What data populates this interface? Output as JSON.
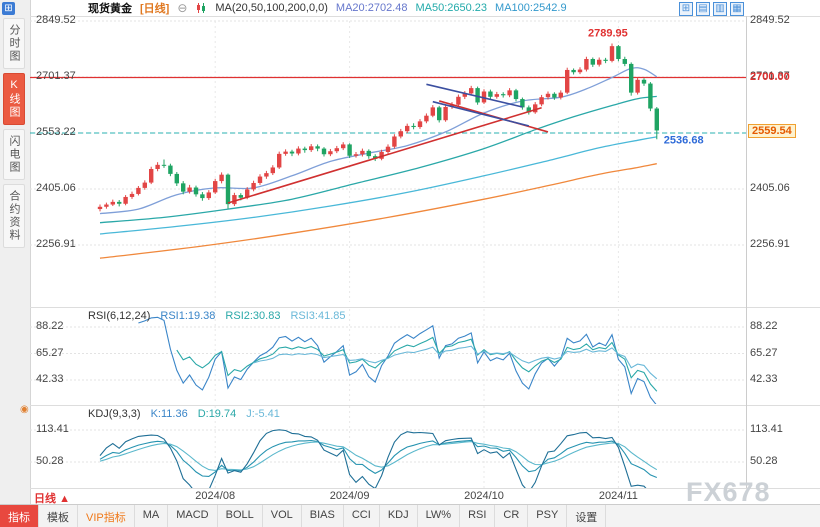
{
  "header": {
    "symbol": "现货黄金",
    "period": "[日线]",
    "ma_settings": "MA(20,50,100,200,0,0)",
    "ma20": "MA20:2702.48",
    "ma50": "MA50:2650.23",
    "ma100": "MA100:2542.9",
    "window_icons": [
      {
        "label": "⊞"
      },
      {
        "label": "▤"
      },
      {
        "label": "▥"
      },
      {
        "label": "▦"
      }
    ]
  },
  "sidebar": {
    "items": [
      {
        "label": "分时图"
      },
      {
        "label": "K线图",
        "cls": "active"
      },
      {
        "label": "闪电图"
      },
      {
        "label": "合约资料"
      }
    ]
  },
  "rsi": {
    "title": "RSI(6,12,24)",
    "v1": "RSI1:19.38",
    "v2": "RSI2:30.83",
    "v3": "RSI3:41.85",
    "axis": [
      88.22,
      65.27,
      42.33
    ],
    "periods": [
      6,
      12,
      24
    ],
    "colors": [
      "#3a85c8",
      "#2aa8a8",
      "#6ab8d8"
    ]
  },
  "kdj": {
    "title": "KDJ(9,3,3)",
    "vk": "K:11.36",
    "vd": "D:19.74",
    "vj": "J:-5.41",
    "axis": [
      113.41,
      50.28
    ],
    "colors": [
      "#2693b0",
      "#5bb8cc",
      "#1f6f96"
    ]
  },
  "x_axis": {
    "labels": [
      "2024/08",
      "2024/09",
      "2024/10",
      "2024/11"
    ],
    "period_label": "日线",
    "period_arrow": "▲"
  },
  "annotations": {
    "hline": "2700.00",
    "last_price": "2559.54"
  },
  "toolbar": {
    "tabs": [
      {
        "label": "指标",
        "cls": "active"
      },
      {
        "label": "模板"
      },
      {
        "label": "VIP指标",
        "cls": "vip"
      },
      {
        "label": "MA"
      },
      {
        "label": "MACD"
      },
      {
        "label": "BOLL"
      },
      {
        "label": "VOL"
      },
      {
        "label": "BIAS"
      },
      {
        "label": "CCI"
      },
      {
        "label": "KDJ"
      },
      {
        "label": "LW%"
      },
      {
        "label": "RSI"
      },
      {
        "label": "CR"
      },
      {
        "label": "PSY"
      },
      {
        "label": "设置"
      }
    ]
  },
  "watermark": "FX678",
  "chart_data": {
    "type": "candlestick",
    "title": "现货黄金 日线",
    "y_ticks": [
      2849.52,
      2701.37,
      2553.22,
      2405.06,
      2256.91
    ],
    "x_tick_indices": [
      18,
      39,
      60,
      81
    ],
    "red_line_value": 2700.0,
    "dashed_line_value": 2553.22,
    "peak_value": 2789.95,
    "last_low_value": 2536.68,
    "last_price": 2559.54,
    "up_color": "#e24545",
    "down_color": "#1fa463",
    "candles": [
      [
        2352,
        2364,
        2346,
        2358
      ],
      [
        2358,
        2369,
        2353,
        2364
      ],
      [
        2364,
        2377,
        2360,
        2371
      ],
      [
        2371,
        2376,
        2359,
        2366
      ],
      [
        2366,
        2389,
        2362,
        2384
      ],
      [
        2384,
        2398,
        2379,
        2392
      ],
      [
        2392,
        2413,
        2388,
        2408
      ],
      [
        2408,
        2428,
        2403,
        2422
      ],
      [
        2422,
        2464,
        2418,
        2458
      ],
      [
        2458,
        2476,
        2452,
        2469
      ],
      [
        2469,
        2483,
        2461,
        2467
      ],
      [
        2467,
        2472,
        2439,
        2445
      ],
      [
        2445,
        2450,
        2413,
        2420
      ],
      [
        2420,
        2426,
        2391,
        2398
      ],
      [
        2398,
        2416,
        2393,
        2409
      ],
      [
        2409,
        2414,
        2385,
        2391
      ],
      [
        2391,
        2397,
        2374,
        2381
      ],
      [
        2381,
        2402,
        2376,
        2396
      ],
      [
        2396,
        2432,
        2392,
        2426
      ],
      [
        2426,
        2449,
        2420,
        2443
      ],
      [
        2443,
        2446,
        2353,
        2365
      ],
      [
        2365,
        2395,
        2360,
        2389
      ],
      [
        2389,
        2394,
        2375,
        2382
      ],
      [
        2382,
        2410,
        2378,
        2404
      ],
      [
        2404,
        2427,
        2399,
        2421
      ],
      [
        2421,
        2444,
        2416,
        2438
      ],
      [
        2438,
        2453,
        2432,
        2447
      ],
      [
        2447,
        2468,
        2442,
        2462
      ],
      [
        2462,
        2504,
        2458,
        2498
      ],
      [
        2498,
        2510,
        2493,
        2504
      ],
      [
        2504,
        2509,
        2492,
        2499
      ],
      [
        2499,
        2518,
        2494,
        2512
      ],
      [
        2512,
        2517,
        2501,
        2508
      ],
      [
        2508,
        2524,
        2503,
        2518
      ],
      [
        2518,
        2523,
        2505,
        2512
      ],
      [
        2512,
        2516,
        2491,
        2497
      ],
      [
        2497,
        2511,
        2492,
        2505
      ],
      [
        2505,
        2519,
        2500,
        2513
      ],
      [
        2513,
        2529,
        2508,
        2523
      ],
      [
        2523,
        2526,
        2487,
        2493
      ],
      [
        2493,
        2503,
        2488,
        2497
      ],
      [
        2497,
        2512,
        2491,
        2506
      ],
      [
        2506,
        2510,
        2485,
        2492
      ],
      [
        2492,
        2497,
        2479,
        2485
      ],
      [
        2485,
        2509,
        2481,
        2503
      ],
      [
        2503,
        2523,
        2498,
        2517
      ],
      [
        2517,
        2550,
        2512,
        2544
      ],
      [
        2544,
        2564,
        2539,
        2558
      ],
      [
        2558,
        2578,
        2553,
        2572
      ],
      [
        2572,
        2579,
        2563,
        2569
      ],
      [
        2569,
        2590,
        2564,
        2584
      ],
      [
        2584,
        2605,
        2579,
        2599
      ],
      [
        2599,
        2627,
        2595,
        2621
      ],
      [
        2621,
        2625,
        2581,
        2587
      ],
      [
        2587,
        2628,
        2583,
        2622
      ],
      [
        2622,
        2635,
        2617,
        2628
      ],
      [
        2628,
        2655,
        2623,
        2649
      ],
      [
        2649,
        2664,
        2643,
        2658
      ],
      [
        2658,
        2678,
        2653,
        2672
      ],
      [
        2672,
        2676,
        2628,
        2634
      ],
      [
        2634,
        2669,
        2630,
        2663
      ],
      [
        2663,
        2668,
        2643,
        2649
      ],
      [
        2649,
        2662,
        2644,
        2656
      ],
      [
        2656,
        2661,
        2647,
        2653
      ],
      [
        2653,
        2672,
        2648,
        2666
      ],
      [
        2666,
        2670,
        2637,
        2643
      ],
      [
        2643,
        2647,
        2615,
        2621
      ],
      [
        2621,
        2626,
        2602,
        2608
      ],
      [
        2608,
        2635,
        2604,
        2629
      ],
      [
        2629,
        2654,
        2624,
        2648
      ],
      [
        2648,
        2663,
        2642,
        2657
      ],
      [
        2657,
        2661,
        2641,
        2647
      ],
      [
        2647,
        2666,
        2642,
        2660
      ],
      [
        2660,
        2726,
        2656,
        2720
      ],
      [
        2720,
        2724,
        2708,
        2714
      ],
      [
        2714,
        2727,
        2709,
        2721
      ],
      [
        2721,
        2755,
        2716,
        2749
      ],
      [
        2749,
        2753,
        2728,
        2734
      ],
      [
        2734,
        2753,
        2729,
        2747
      ],
      [
        2747,
        2752,
        2738,
        2744
      ],
      [
        2744,
        2789.95,
        2740,
        2783
      ],
      [
        2783,
        2786,
        2743,
        2749
      ],
      [
        2749,
        2755,
        2730,
        2736
      ],
      [
        2736,
        2740,
        2652,
        2660
      ],
      [
        2660,
        2700,
        2655,
        2694
      ],
      [
        2694,
        2698,
        2678,
        2684
      ],
      [
        2684,
        2688,
        2611,
        2618
      ],
      [
        2618,
        2622,
        2536.68,
        2560
      ]
    ],
    "ma_lines": [
      {
        "name": "MA20",
        "color": "#7f9fd8",
        "points": [
          [
            0,
            2340
          ],
          [
            6,
            2352
          ],
          [
            12,
            2390
          ],
          [
            18,
            2408
          ],
          [
            24,
            2408
          ],
          [
            30,
            2440
          ],
          [
            36,
            2478
          ],
          [
            42,
            2500
          ],
          [
            48,
            2520
          ],
          [
            54,
            2556
          ],
          [
            60,
            2606
          ],
          [
            66,
            2638
          ],
          [
            72,
            2648
          ],
          [
            76,
            2670
          ],
          [
            80,
            2700
          ],
          [
            83,
            2724
          ],
          [
            85,
            2722
          ],
          [
            87,
            2702
          ]
        ]
      },
      {
        "name": "MA50",
        "color": "#2aa8a8",
        "points": [
          [
            0,
            2316
          ],
          [
            10,
            2330
          ],
          [
            20,
            2352
          ],
          [
            30,
            2378
          ],
          [
            40,
            2420
          ],
          [
            50,
            2462
          ],
          [
            60,
            2512
          ],
          [
            68,
            2562
          ],
          [
            74,
            2596
          ],
          [
            80,
            2626
          ],
          [
            84,
            2644
          ],
          [
            87,
            2650
          ]
        ]
      },
      {
        "name": "MA100",
        "color": "#49b8d8",
        "points": [
          [
            0,
            2286
          ],
          [
            12,
            2306
          ],
          [
            24,
            2330
          ],
          [
            36,
            2360
          ],
          [
            48,
            2396
          ],
          [
            60,
            2440
          ],
          [
            70,
            2480
          ],
          [
            78,
            2514
          ],
          [
            84,
            2534
          ],
          [
            87,
            2543
          ]
        ]
      },
      {
        "name": "MA200",
        "color": "#f0883c",
        "points": [
          [
            0,
            2222
          ],
          [
            15,
            2252
          ],
          [
            30,
            2288
          ],
          [
            45,
            2330
          ],
          [
            60,
            2378
          ],
          [
            70,
            2414
          ],
          [
            78,
            2444
          ],
          [
            84,
            2462
          ],
          [
            87,
            2472
          ]
        ]
      }
    ],
    "trend_lines": [
      {
        "color": "#d03030",
        "w": 1.6,
        "from": [
          20,
          2368
        ],
        "to": [
          69,
          2620
        ]
      },
      {
        "color": "#d03030",
        "w": 1.6,
        "from": [
          53,
          2638
        ],
        "to": [
          70,
          2556
        ]
      },
      {
        "color": "#3b4fa0",
        "w": 1.6,
        "from": [
          51,
          2682
        ],
        "to": [
          66,
          2622
        ]
      },
      {
        "color": "#3b4fa0",
        "w": 1.6,
        "from": [
          52,
          2636
        ],
        "to": [
          67,
          2572
        ]
      }
    ]
  }
}
